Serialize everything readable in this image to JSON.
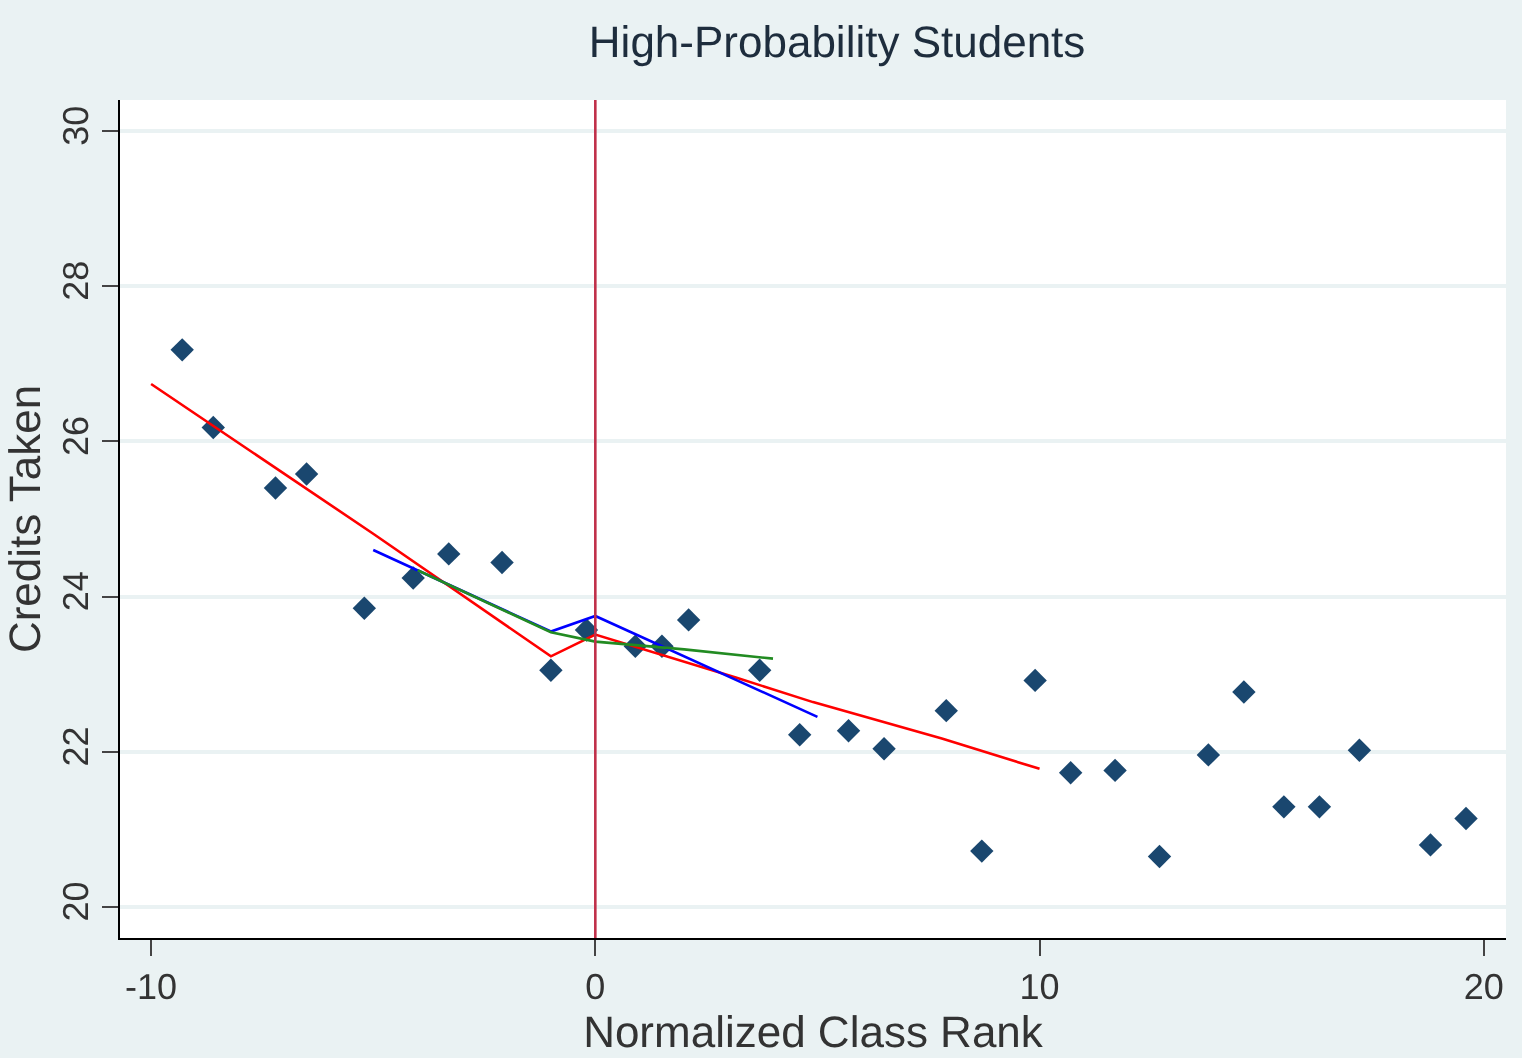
{
  "chart_data": {
    "type": "scatter",
    "title": "High-Probability Students",
    "xlabel": "Normalized Class Rank",
    "ylabel": "Credits Taken",
    "xlim": [
      -10.7,
      20.5
    ],
    "ylim": [
      19.6,
      30.4
    ],
    "xticks": [
      -10,
      0,
      10,
      20
    ],
    "yticks": [
      20,
      22,
      24,
      26,
      28,
      30
    ],
    "grid": "y",
    "legend": false,
    "series": [
      {
        "marker": "diamond",
        "color": "#1a476f",
        "x": [
          -9.3,
          -8.6,
          -7.2,
          -6.5,
          -5.2,
          -4.1,
          -3.3,
          -2.1,
          -1.0,
          -0.2,
          0.9,
          1.5,
          2.1,
          3.7,
          4.6,
          5.7,
          6.5,
          7.9,
          8.7,
          9.9,
          10.7,
          11.7,
          12.7,
          13.8,
          14.6,
          15.5,
          16.3,
          17.2,
          18.8,
          19.6
        ],
        "values": [
          27.18,
          26.18,
          25.4,
          25.58,
          23.85,
          24.24,
          24.55,
          24.44,
          23.05,
          23.57,
          23.36,
          23.36,
          23.7,
          23.05,
          22.22,
          22.27,
          22.04,
          22.53,
          20.72,
          22.92,
          21.73,
          21.76,
          20.65,
          21.96,
          22.77,
          21.29,
          21.29,
          22.02,
          20.8,
          21.14
        ]
      },
      {
        "type": "line",
        "marker": "none",
        "color": "#ff0000",
        "x": [
          -10,
          -5,
          -1,
          0,
          3.2,
          4.9,
          7.8,
          10
        ],
        "values": [
          26.74,
          24.81,
          23.23,
          23.51,
          22.95,
          22.64,
          22.17,
          21.78
        ]
      },
      {
        "type": "line",
        "marker": "none",
        "color": "#0000ff",
        "x": [
          -5,
          -1,
          0,
          5
        ],
        "values": [
          24.6,
          23.55,
          23.75,
          22.45
        ]
      },
      {
        "type": "line",
        "marker": "none",
        "color": "#228b22",
        "x": [
          -4,
          -1,
          0,
          2,
          4
        ],
        "values": [
          24.34,
          23.54,
          23.42,
          23.32,
          23.2
        ]
      }
    ],
    "ref_lines": [
      {
        "axis": "x",
        "value": 0,
        "color": "#c0304a"
      }
    ]
  }
}
